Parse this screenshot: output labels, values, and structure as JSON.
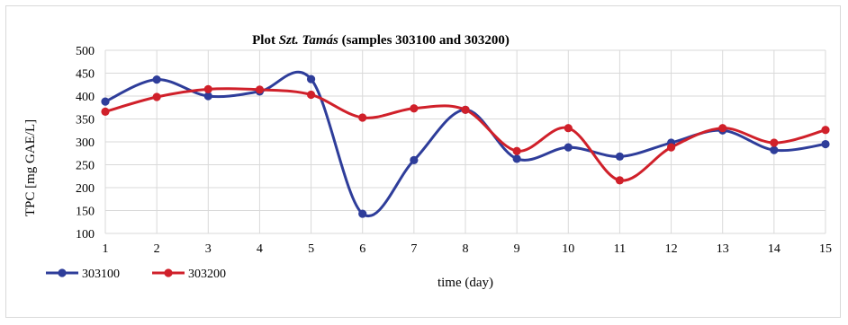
{
  "chart_data": {
    "type": "line",
    "title": "Plot Szt. Tamás (samples 303100 and 303200)",
    "title_parts": {
      "prefix": "Plot ",
      "italic": "Szt. Tamás",
      "suffix": " (samples 303100 and 303200)"
    },
    "xlabel": "time (day)",
    "ylabel": "TPC [mg GAE/L]",
    "x": [
      1,
      2,
      3,
      4,
      5,
      6,
      7,
      8,
      9,
      10,
      11,
      12,
      13,
      14,
      15
    ],
    "x_tick_labels": [
      "1",
      "2",
      "3",
      "4",
      "5",
      "6",
      "7",
      "8",
      "9",
      "10",
      "11",
      "12",
      "13",
      "14",
      "15"
    ],
    "ylim": [
      100,
      500
    ],
    "y_ticks": [
      100,
      150,
      200,
      250,
      300,
      350,
      400,
      450,
      500
    ],
    "y_tick_labels": [
      "100",
      "150",
      "200",
      "250",
      "300",
      "350",
      "400",
      "450",
      "500"
    ],
    "grid": true,
    "smooth": true,
    "legend_position": "bottom-left",
    "series": [
      {
        "name": "303100",
        "color": "#2E3D9A",
        "values": [
          388,
          436,
          400,
          410,
          437,
          143,
          260,
          370,
          263,
          288,
          268,
          298,
          325,
          282,
          295
        ]
      },
      {
        "name": "303200",
        "color": "#D0202A",
        "values": [
          366,
          398,
          415,
          414,
          403,
          353,
          373,
          370,
          280,
          330,
          216,
          288,
          330,
          298,
          326
        ]
      }
    ]
  }
}
